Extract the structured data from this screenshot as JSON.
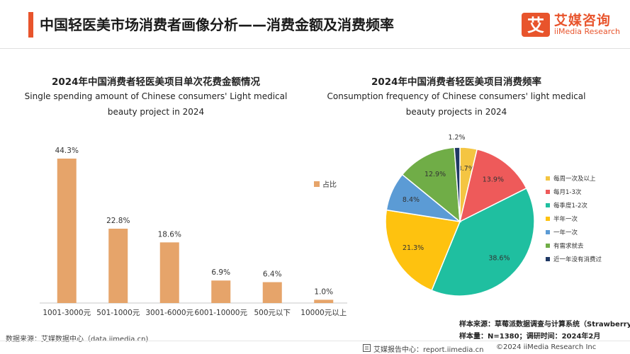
{
  "header": {
    "title": "中国轻医美市场消费者画像分析——消费金额及消费频率",
    "brand_cn": "艾媒咨询",
    "brand_en": "iiMedia Research",
    "brand_glyph": "艾",
    "accent_color": "#e8542c"
  },
  "chart_data": [
    {
      "type": "bar",
      "title": "2024年中国消费者轻医美项目单次花费金额情况",
      "subtitle": "Single spending amount of Chinese consumers' Light medical beauty project in 2024",
      "categories": [
        "1001-3000元",
        "501-1000元",
        "3001-6000元",
        "6001-10000元",
        "500元以下",
        "10000元以上"
      ],
      "series": [
        {
          "name": "占比",
          "values": [
            44.3,
            22.8,
            18.6,
            6.9,
            6.4,
            1.0
          ],
          "color": "#e6a46a"
        }
      ],
      "value_labels": [
        "44.3%",
        "22.8%",
        "18.6%",
        "6.9%",
        "6.4%",
        "1.0%"
      ],
      "ylim": [
        0,
        50
      ],
      "grid": false,
      "legend_position": "right"
    },
    {
      "type": "pie",
      "title": "2024年中国消费者轻医美项目消费频率",
      "subtitle": "Consumption frequency of Chinese consumers' light medical beauty projects in 2024",
      "categories": [
        "每周一次及以上",
        "每月1-3次",
        "每季度1-2次",
        "半年一次",
        "一年一次",
        "有需求就去",
        "近一年没有消费过"
      ],
      "values": [
        3.7,
        13.9,
        38.6,
        21.3,
        8.4,
        12.9,
        1.2
      ],
      "value_labels": [
        "3.7%",
        "13.9%",
        "38.6%",
        "21.3%",
        "8.4%",
        "12.9%",
        "1.2%"
      ],
      "colors": [
        "#f4c542",
        "#ee5a5a",
        "#1fbfa0",
        "#fec20f",
        "#5b9bd5",
        "#70ad47",
        "#1f3864"
      ],
      "legend_position": "right"
    }
  ],
  "footer": {
    "left_source": "数据来源：艾媒数据中心（data.iimedia.cn)",
    "sample_source": "样本来源：草莓派数据调查与计算系统（Strawberry Pie)",
    "sample_size": "样本量：N=1380；调研时间：2024年2月",
    "report_center": "艾媒报告中心：report.iimedia.cn",
    "copyright": "©2024  iiMedia Research  Inc"
  }
}
